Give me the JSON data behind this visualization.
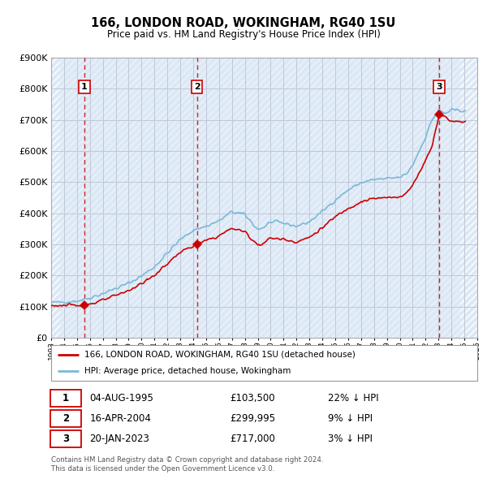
{
  "title": "166, LONDON ROAD, WOKINGHAM, RG40 1SU",
  "subtitle": "Price paid vs. HM Land Registry's House Price Index (HPI)",
  "xlim_years": [
    1993,
    2026
  ],
  "ylim": [
    0,
    900000
  ],
  "ytick_values": [
    0,
    100000,
    200000,
    300000,
    400000,
    500000,
    600000,
    700000,
    800000,
    900000
  ],
  "ytick_labels": [
    "£0",
    "£100K",
    "£200K",
    "£300K",
    "£400K",
    "£500K",
    "£600K",
    "£700K",
    "£800K",
    "£900K"
  ],
  "hpi_color": "#7ab8d8",
  "price_color": "#cc0000",
  "vline_color": "#cc0000",
  "grid_color": "#c0c8d8",
  "bg_color": "#dce8f5",
  "hatch_color": "#ffffff",
  "sale_points": [
    {
      "year": 1995.58,
      "price": 103500,
      "label": "1"
    },
    {
      "year": 2004.29,
      "price": 299995,
      "label": "2"
    },
    {
      "year": 2023.05,
      "price": 717000,
      "label": "3"
    }
  ],
  "sale_annotations": [
    {
      "label": "1",
      "date": "04-AUG-1995",
      "price": "£103,500",
      "hpi_diff": "22% ↓ HPI"
    },
    {
      "label": "2",
      "date": "16-APR-2004",
      "price": "£299,995",
      "hpi_diff": "9% ↓ HPI"
    },
    {
      "label": "3",
      "date": "20-JAN-2023",
      "price": "£717,000",
      "hpi_diff": "3% ↓ HPI"
    }
  ],
  "legend_entries": [
    {
      "label": "166, LONDON ROAD, WOKINGHAM, RG40 1SU (detached house)",
      "color": "#cc0000"
    },
    {
      "label": "HPI: Average price, detached house, Wokingham",
      "color": "#7ab8d8"
    }
  ],
  "footer": "Contains HM Land Registry data © Crown copyright and database right 2024.\nThis data is licensed under the Open Government Licence v3.0."
}
